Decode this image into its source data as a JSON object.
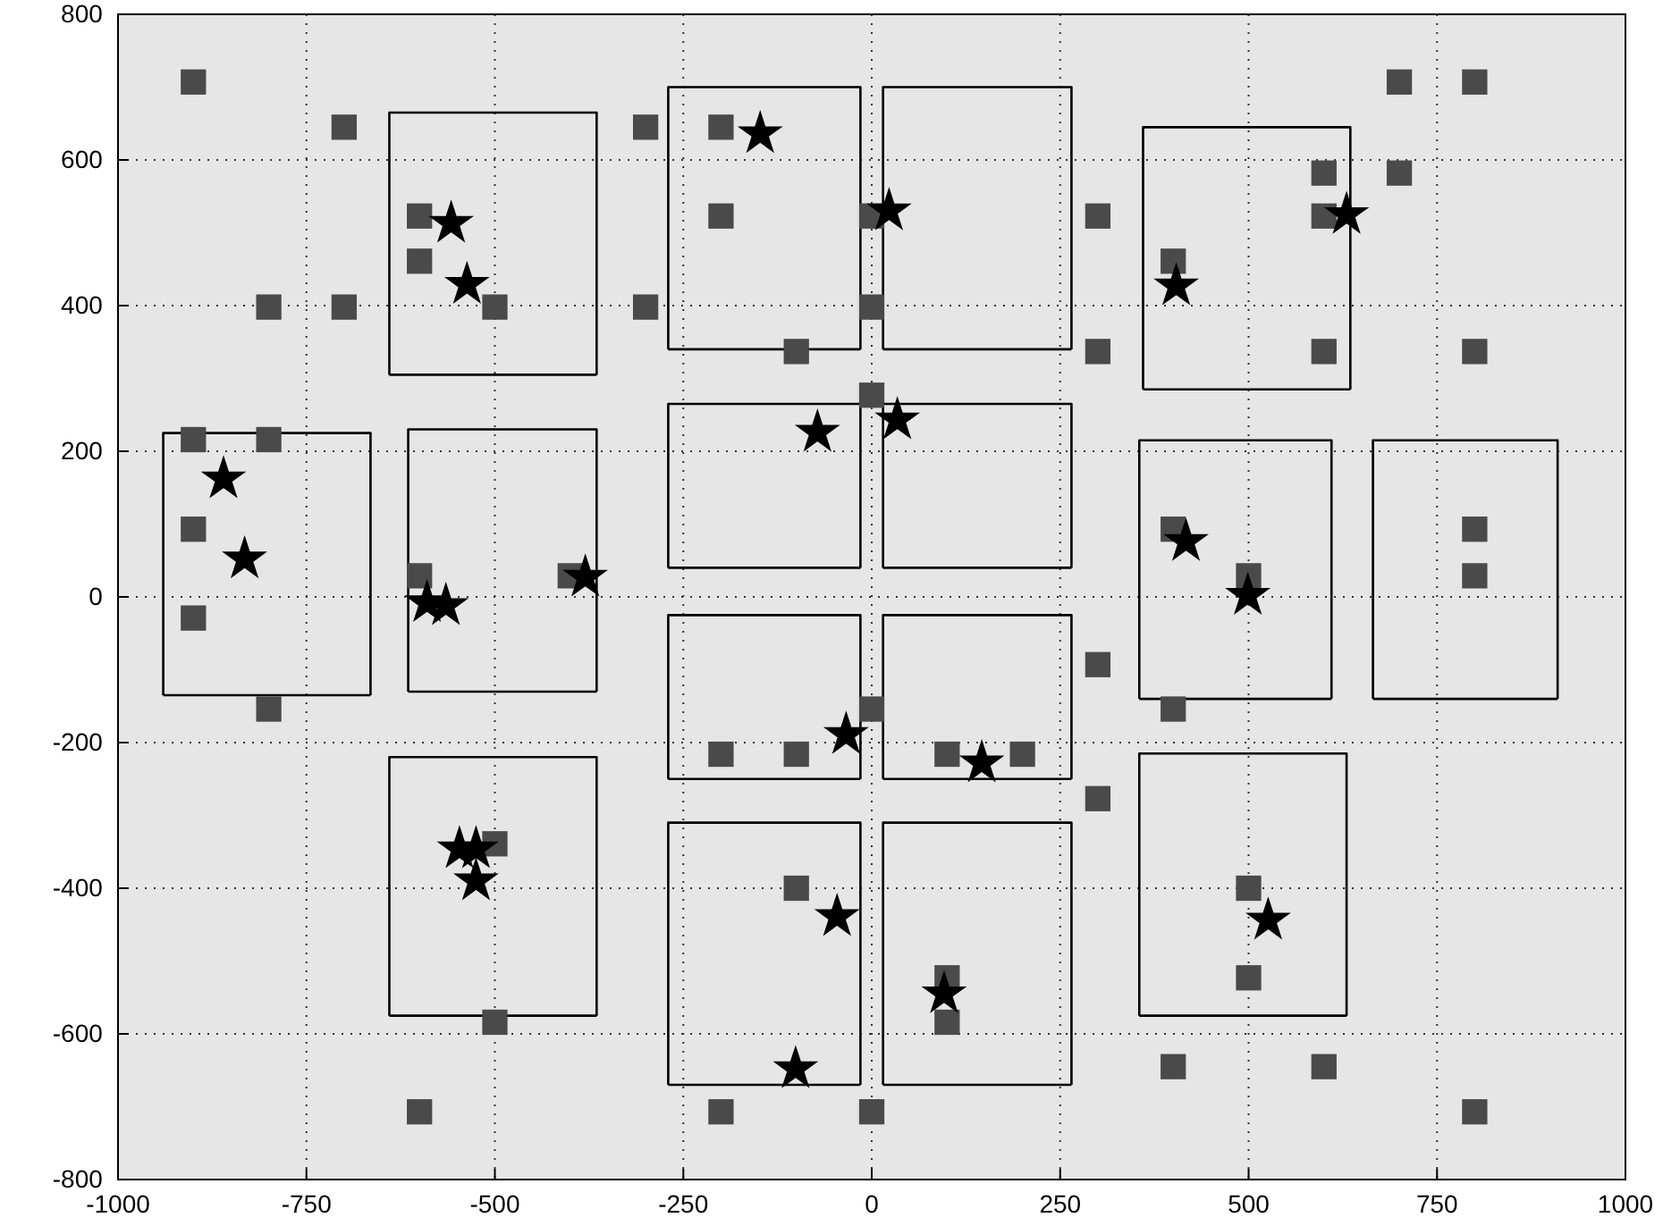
{
  "chart_data": {
    "type": "scatter",
    "xlim": [
      -1000,
      1000
    ],
    "ylim": [
      -800,
      800
    ],
    "xticks": [
      -1000,
      -750,
      -500,
      -250,
      0,
      250,
      500,
      750,
      1000
    ],
    "yticks": [
      -800,
      -600,
      -400,
      -200,
      0,
      200,
      400,
      600,
      800
    ],
    "grid": true,
    "series": [
      {
        "type": "line",
        "marker": "none",
        "color": "#000000",
        "x": [
          -940,
          -940,
          -665,
          -665
        ],
        "values": [
          -135,
          225,
          225,
          -135
        ]
      },
      {
        "type": "line",
        "marker": "none",
        "color": "#000000",
        "x": [
          -940,
          -665
        ],
        "values": [
          -135,
          -135
        ]
      },
      {
        "type": "line",
        "marker": "none",
        "color": "#000000",
        "x": [
          -640,
          -640,
          -365,
          -365
        ],
        "values": [
          305,
          665,
          665,
          305
        ]
      },
      {
        "type": "line",
        "marker": "none",
        "color": "#000000",
        "x": [
          -640,
          -365
        ],
        "values": [
          305,
          305
        ]
      },
      {
        "type": "line",
        "marker": "none",
        "color": "#000000",
        "x": [
          -615,
          -615,
          -365,
          -365
        ],
        "values": [
          -130,
          230,
          230,
          -130
        ]
      },
      {
        "type": "line",
        "marker": "none",
        "color": "#000000",
        "x": [
          -615,
          -365
        ],
        "values": [
          -130,
          -130
        ]
      },
      {
        "type": "line",
        "marker": "none",
        "color": "#000000",
        "x": [
          -640,
          -640,
          -365,
          -365
        ],
        "values": [
          -575,
          -220,
          -220,
          -575
        ]
      },
      {
        "type": "line",
        "marker": "none",
        "color": "#000000",
        "x": [
          -640,
          -365
        ],
        "values": [
          -575,
          -575
        ]
      },
      {
        "type": "line",
        "marker": "none",
        "color": "#000000",
        "x": [
          -270,
          -270,
          -15,
          -15
        ],
        "values": [
          340,
          700,
          700,
          340
        ]
      },
      {
        "type": "line",
        "marker": "none",
        "color": "#000000",
        "x": [
          -270,
          -15
        ],
        "values": [
          340,
          340
        ]
      },
      {
        "type": "line",
        "marker": "none",
        "color": "#000000",
        "x": [
          15,
          15,
          265,
          265
        ],
        "values": [
          340,
          700,
          700,
          340
        ]
      },
      {
        "type": "line",
        "marker": "none",
        "color": "#000000",
        "x": [
          15,
          265
        ],
        "values": [
          340,
          340
        ]
      },
      {
        "type": "line",
        "marker": "none",
        "color": "#000000",
        "x": [
          -270,
          -270,
          -15,
          -15
        ],
        "values": [
          40,
          265,
          265,
          40
        ]
      },
      {
        "type": "line",
        "marker": "none",
        "color": "#000000",
        "x": [
          -270,
          -15
        ],
        "values": [
          40,
          40
        ]
      },
      {
        "type": "line",
        "marker": "none",
        "color": "#000000",
        "x": [
          15,
          15,
          265,
          265
        ],
        "values": [
          40,
          265,
          265,
          40
        ]
      },
      {
        "type": "line",
        "marker": "none",
        "color": "#000000",
        "x": [
          15,
          265
        ],
        "values": [
          40,
          40
        ]
      },
      {
        "type": "line",
        "marker": "none",
        "color": "#000000",
        "x": [
          -270,
          -270,
          -15,
          -15
        ],
        "values": [
          -250,
          -25,
          -25,
          -250
        ]
      },
      {
        "type": "line",
        "marker": "none",
        "color": "#000000",
        "x": [
          -270,
          -15
        ],
        "values": [
          -250,
          -250
        ]
      },
      {
        "type": "line",
        "marker": "none",
        "color": "#000000",
        "x": [
          15,
          15,
          265,
          265
        ],
        "values": [
          -250,
          -25,
          -25,
          -250
        ]
      },
      {
        "type": "line",
        "marker": "none",
        "color": "#000000",
        "x": [
          15,
          265
        ],
        "values": [
          -250,
          -250
        ]
      },
      {
        "type": "line",
        "marker": "none",
        "color": "#000000",
        "x": [
          -270,
          -270,
          -15,
          -15
        ],
        "values": [
          -670,
          -310,
          -310,
          -670
        ]
      },
      {
        "type": "line",
        "marker": "none",
        "color": "#000000",
        "x": [
          -270,
          -15
        ],
        "values": [
          -670,
          -670
        ]
      },
      {
        "type": "line",
        "marker": "none",
        "color": "#000000",
        "x": [
          15,
          15,
          265,
          265
        ],
        "values": [
          -670,
          -310,
          -310,
          -670
        ]
      },
      {
        "type": "line",
        "marker": "none",
        "color": "#000000",
        "x": [
          15,
          265
        ],
        "values": [
          -670,
          -670
        ]
      },
      {
        "type": "line",
        "marker": "none",
        "color": "#000000",
        "x": [
          360,
          360,
          635,
          635
        ],
        "values": [
          285,
          645,
          645,
          285
        ]
      },
      {
        "type": "line",
        "marker": "none",
        "color": "#000000",
        "x": [
          360,
          635
        ],
        "values": [
          285,
          285
        ]
      },
      {
        "type": "line",
        "marker": "none",
        "color": "#000000",
        "x": [
          355,
          355,
          610,
          610
        ],
        "values": [
          -140,
          215,
          215,
          -140
        ]
      },
      {
        "type": "line",
        "marker": "none",
        "color": "#000000",
        "x": [
          355,
          610
        ],
        "values": [
          -140,
          -140
        ]
      },
      {
        "type": "line",
        "marker": "none",
        "color": "#000000",
        "x": [
          665,
          665,
          910,
          910
        ],
        "values": [
          -140,
          215,
          215,
          -140
        ]
      },
      {
        "type": "line",
        "marker": "none",
        "color": "#000000",
        "x": [
          665,
          910
        ],
        "values": [
          -140,
          -140
        ]
      },
      {
        "type": "line",
        "marker": "none",
        "color": "#000000",
        "x": [
          355,
          355,
          630,
          630
        ],
        "values": [
          -575,
          -215,
          -215,
          -575
        ]
      },
      {
        "type": "line",
        "marker": "none",
        "color": "#000000",
        "x": [
          355,
          630
        ],
        "values": [
          -575,
          -575
        ]
      },
      {
        "marker": "square",
        "color": "#4a4a4a",
        "x": [
          -900,
          -800,
          -900,
          700
        ],
        "values": [
          707,
          398,
          -29,
          582
        ]
      },
      {
        "marker": "square",
        "color": "#4a4a4a",
        "x": [
          -700,
          -600,
          -600,
          -500,
          -700,
          -900,
          -800,
          -900,
          -600,
          -400,
          -300,
          -300,
          -800,
          -500,
          -500,
          -600,
          -200,
          -200,
          -100,
          0,
          0,
          300,
          300,
          0,
          300,
          0,
          -200,
          -100,
          100,
          200,
          300,
          -100,
          100,
          100,
          -200,
          0,
          700,
          800,
          600,
          600,
          400,
          600,
          800,
          400,
          800,
          500,
          800,
          400,
          500,
          500,
          400,
          600,
          800
        ],
        "values": [
          645,
          523,
          461,
          398,
          398,
          216,
          216,
          93,
          29,
          29,
          645,
          398,
          -154,
          -339,
          -584,
          -707,
          645,
          523,
          337,
          398,
          523,
          523,
          337,
          277,
          -93,
          -154,
          -216,
          -216,
          -216,
          -216,
          -277,
          -400,
          -523,
          -584,
          -707,
          -707,
          707,
          707,
          582,
          523,
          461,
          337,
          337,
          93,
          93,
          29,
          29,
          -154,
          -400,
          -523,
          -645,
          -645,
          -707
        ]
      },
      {
        "marker": "star",
        "color": "#000000",
        "x": [
          -558,
          -537,
          -860,
          -832,
          -590,
          -565,
          -380,
          -547,
          -525,
          -525,
          -148,
          23,
          -72,
          34,
          -34,
          146,
          -46,
          -101,
          96,
          630,
          404,
          417,
          499,
          526
        ],
        "values": [
          513,
          429,
          162,
          52,
          -8,
          -12,
          27,
          -346,
          -346,
          -390,
          636,
          530,
          226,
          243,
          -189,
          -228,
          -439,
          -648,
          -545,
          525,
          427,
          76,
          2,
          -444
        ]
      }
    ]
  }
}
